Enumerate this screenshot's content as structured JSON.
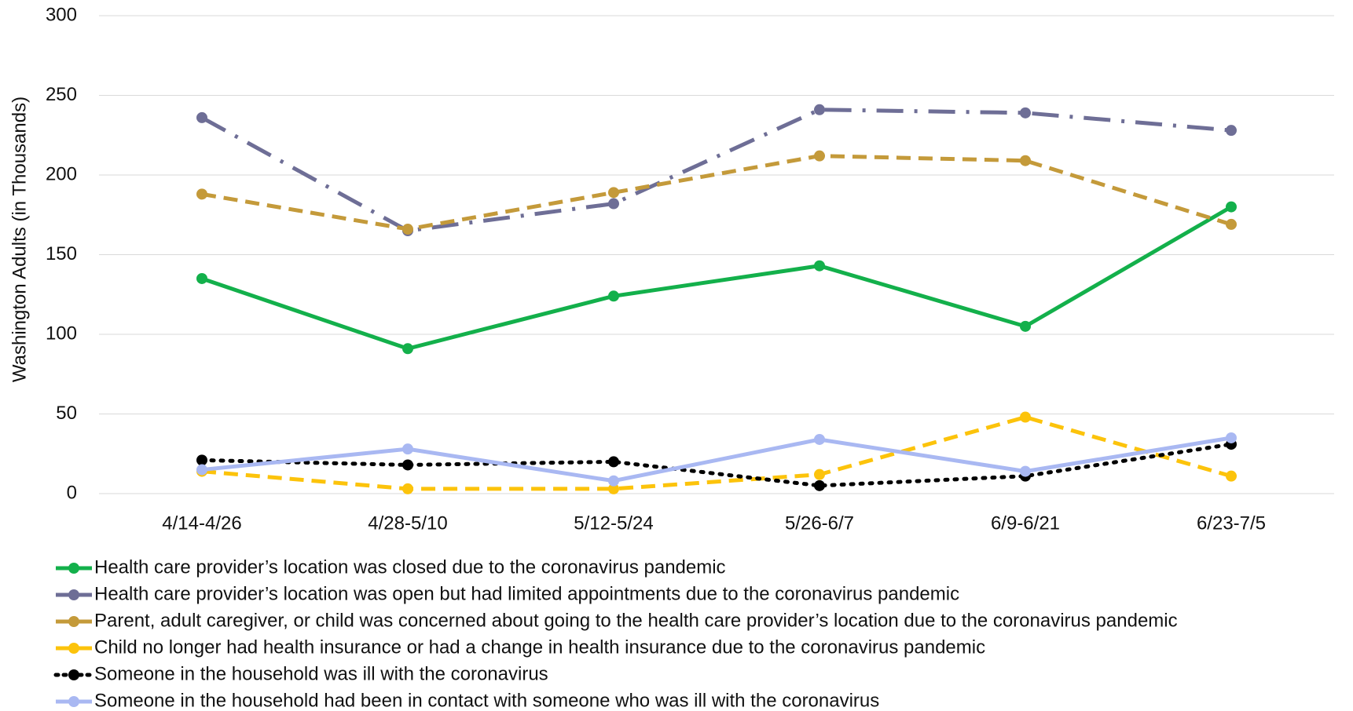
{
  "chart_data": {
    "type": "line",
    "ylabel": "Washington Adults (in Thousands)",
    "categories": [
      "4/14-4/26",
      "4/28-5/10",
      "5/12-5/24",
      "5/26-6/7",
      "6/9-6/21",
      "6/23-7/5"
    ],
    "series": [
      {
        "name": "Health care provider’s location was closed due to the coronavirus pandemic",
        "color": "#13b04b",
        "dash": "solid",
        "values": [
          135,
          91,
          124,
          143,
          105,
          180
        ]
      },
      {
        "name": "Health care provider’s location was open but had limited appointments due to the coronavirus pandemic",
        "color": "#6e6e96",
        "dash": "dashdot",
        "values": [
          236,
          165,
          182,
          241,
          239,
          228
        ]
      },
      {
        "name": "Parent, adult caregiver, or child was concerned about going to the health care provider’s location due to the coronavirus pandemic",
        "color": "#c49a3a",
        "dash": "dash",
        "values": [
          188,
          166,
          189,
          212,
          209,
          169
        ]
      },
      {
        "name": "Child no longer had health insurance or had a change in health insurance due to the coronavirus pandemic",
        "color": "#fcc30b",
        "dash": "dash",
        "values": [
          14,
          3,
          3,
          12,
          48,
          11
        ]
      },
      {
        "name": "Someone in the household was ill with the coronavirus",
        "color": "#000000",
        "dash": "dot",
        "values": [
          21,
          18,
          20,
          5,
          11,
          31
        ]
      },
      {
        "name": "Someone in the household had been in contact with someone who was ill with the coronavirus",
        "color": "#a9b8f2",
        "dash": "solid",
        "values": [
          15,
          28,
          8,
          34,
          14,
          35
        ]
      }
    ],
    "ylim": [
      0,
      300
    ],
    "yticks": [
      0,
      50,
      100,
      150,
      200,
      250,
      300
    ],
    "grid": true
  }
}
